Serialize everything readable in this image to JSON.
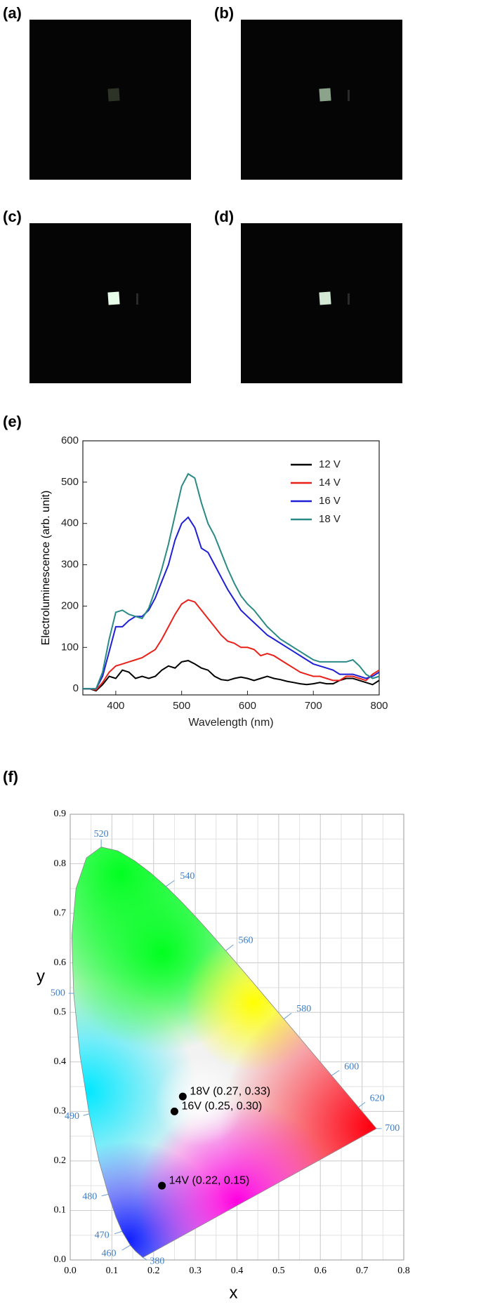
{
  "photos": [
    {
      "label": "(a)"
    },
    {
      "label": "(b)"
    },
    {
      "label": "(c)"
    },
    {
      "label": "(d)"
    }
  ],
  "chart_data": [
    {
      "type": "line",
      "label": "(e)",
      "xlabel": "Wavelength (nm)",
      "ylabel": "Electroluminescence (arb. unit)",
      "x": [
        350,
        360,
        370,
        380,
        390,
        400,
        410,
        420,
        430,
        440,
        450,
        460,
        470,
        480,
        490,
        500,
        510,
        520,
        530,
        540,
        550,
        560,
        570,
        580,
        590,
        600,
        610,
        620,
        630,
        640,
        650,
        660,
        670,
        680,
        690,
        700,
        710,
        720,
        730,
        740,
        750,
        760,
        770,
        780,
        790,
        800
      ],
      "series": [
        {
          "name": "12 V",
          "color": "#000000",
          "values": [
            0,
            0,
            -5,
            10,
            30,
            25,
            45,
            40,
            25,
            30,
            25,
            30,
            45,
            55,
            50,
            65,
            68,
            60,
            50,
            45,
            30,
            22,
            20,
            25,
            28,
            25,
            20,
            25,
            30,
            25,
            22,
            18,
            15,
            12,
            10,
            12,
            15,
            12,
            12,
            20,
            25,
            25,
            20,
            15,
            10,
            20
          ]
        },
        {
          "name": "14 V",
          "color": "#e8221b",
          "values": [
            0,
            0,
            -3,
            15,
            40,
            55,
            60,
            65,
            70,
            75,
            85,
            95,
            120,
            150,
            180,
            205,
            215,
            210,
            190,
            170,
            150,
            130,
            115,
            110,
            100,
            100,
            95,
            80,
            85,
            80,
            70,
            60,
            50,
            40,
            35,
            30,
            30,
            25,
            20,
            20,
            30,
            30,
            25,
            20,
            35,
            45
          ]
        },
        {
          "name": "16 V",
          "color": "#1f1fd6",
          "values": [
            0,
            0,
            0,
            30,
            90,
            150,
            150,
            165,
            175,
            175,
            190,
            220,
            260,
            300,
            360,
            400,
            415,
            390,
            340,
            330,
            300,
            270,
            240,
            215,
            190,
            175,
            160,
            145,
            130,
            120,
            110,
            100,
            90,
            80,
            70,
            60,
            55,
            50,
            45,
            35,
            35,
            35,
            30,
            25,
            30,
            40
          ]
        },
        {
          "name": "18 V",
          "color": "#2a8a86",
          "values": [
            0,
            0,
            0,
            40,
            120,
            185,
            190,
            180,
            175,
            170,
            195,
            240,
            290,
            350,
            420,
            490,
            520,
            510,
            450,
            400,
            370,
            330,
            290,
            255,
            225,
            205,
            190,
            170,
            150,
            135,
            120,
            110,
            100,
            90,
            80,
            70,
            65,
            65,
            65,
            65,
            65,
            70,
            55,
            35,
            25,
            30
          ]
        }
      ],
      "xlim": [
        350,
        800
      ],
      "xticks": [
        400,
        500,
        600,
        700,
        800
      ],
      "ylim": [
        -15,
        600
      ],
      "yticks": [
        0,
        100,
        200,
        300,
        400,
        500,
        600
      ],
      "legend": "upper right"
    },
    {
      "type": "scatter",
      "label": "(f)",
      "xlabel": "x",
      "ylabel": "y",
      "x": [
        0.27,
        0.25,
        0.22
      ],
      "values": [
        0.33,
        0.3,
        0.15
      ],
      "labels": [
        "18V (0.27, 0.33)",
        "16V (0.25, 0.30)",
        "14V (0.22, 0.15)"
      ],
      "color": "#000000",
      "wavelength_labels": [
        "520",
        "540",
        "560",
        "580",
        "600",
        "620",
        "700",
        "500",
        "490",
        "480",
        "470",
        "460",
        "380"
      ],
      "xlim": [
        0,
        0.8
      ],
      "xticks": [
        {
          "value": 0,
          "label": "0.0"
        },
        0.1,
        0.2,
        0.3,
        0.4,
        0.5,
        0.6,
        0.7,
        0.8
      ],
      "ylim": [
        0,
        0.9
      ],
      "yticks": [
        {
          "value": 0,
          "label": "0.0"
        },
        0.1,
        0.2,
        0.3,
        0.4,
        0.5,
        0.6,
        0.7,
        0.8,
        0.9
      ],
      "grid": true
    }
  ]
}
